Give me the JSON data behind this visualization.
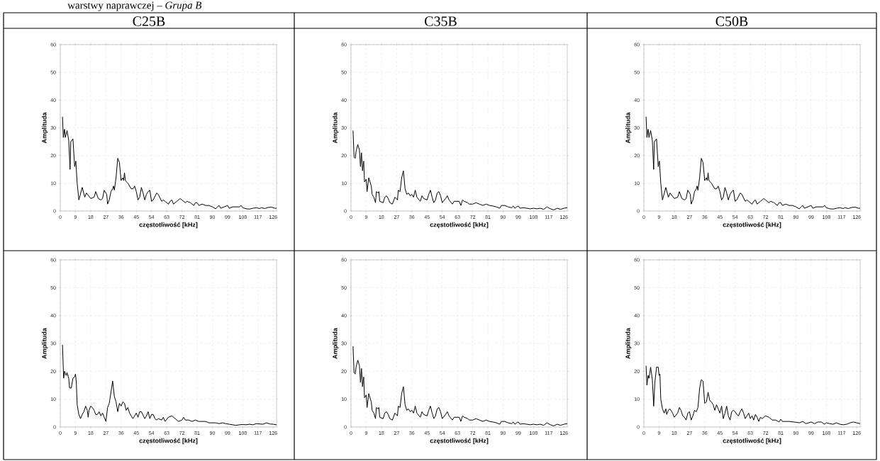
{
  "chart_data": [
    {
      "type": "line",
      "title": "C25B",
      "annotations": [
        "warstwy naprawczej – *Grupa B*"
      ],
      "xlabel": "częstotliwość [kHz]",
      "ylabel": "Amplituda",
      "color": "#000000",
      "grid": true,
      "xlim": [
        0,
        128
      ],
      "ylim": [
        0,
        60
      ],
      "xticks": [
        0,
        9,
        18,
        27,
        36,
        45,
        54,
        63,
        72,
        81,
        90,
        99,
        108,
        117,
        126
      ],
      "yticks": [
        0,
        10,
        20,
        30,
        40,
        50,
        60
      ],
      "x": [
        1.3,
        1.8,
        2.5,
        3,
        4,
        5,
        5.8,
        6.2,
        7.5,
        8.5,
        9.2,
        10,
        11,
        13,
        14.5,
        15.5,
        18,
        20,
        21,
        22.5,
        24,
        25,
        26,
        27.5,
        28,
        29,
        30,
        31,
        31.5,
        32,
        33,
        34,
        35,
        36,
        37,
        37.5,
        38,
        38.5,
        40,
        42,
        43,
        44,
        45,
        46,
        47,
        48,
        49,
        50,
        51,
        52,
        53,
        54,
        55,
        57,
        58,
        60,
        61,
        62,
        64,
        65,
        66,
        67,
        69,
        71,
        72,
        74,
        75,
        77,
        79,
        80,
        81,
        82,
        84,
        86,
        88,
        90,
        92,
        93,
        94,
        95,
        97,
        99,
        100,
        102,
        104,
        106,
        107,
        108,
        110,
        112,
        114,
        116,
        118,
        119,
        121,
        123,
        125,
        127,
        128
      ],
      "values": [
        34,
        26.5,
        29.5,
        26.5,
        29,
        25.5,
        15,
        25,
        26,
        16,
        18,
        10,
        4,
        8.5,
        5,
        6.5,
        4.5,
        5,
        7,
        4.5,
        4,
        4.5,
        7.5,
        6,
        2.5,
        4,
        7,
        8,
        9,
        7.5,
        12,
        19,
        17.5,
        11,
        12,
        11,
        13.8,
        11,
        10,
        8,
        8,
        9,
        7,
        4,
        5,
        8.5,
        6.5,
        4,
        6,
        7,
        7.5,
        3.5,
        4,
        6.5,
        6,
        3.5,
        4,
        3.5,
        2.5,
        3.5,
        4,
        2.5,
        3.5,
        4.5,
        4,
        3,
        3.5,
        3,
        2,
        3,
        3,
        2,
        2.5,
        2,
        2,
        1.5,
        0.8,
        1.5,
        2,
        1,
        1.5,
        2,
        1,
        1.5,
        1.5,
        1.5,
        2,
        1.2,
        0.8,
        0.7,
        1,
        1.2,
        0.9,
        1.2,
        0.9,
        1.3,
        1.4,
        1,
        1
      ]
    },
    {
      "type": "line",
      "title": "C35B",
      "xlabel": "częstotliwość [kHz]",
      "ylabel": "Amplituda",
      "color": "#000000",
      "grid": true,
      "xlim": [
        0,
        128
      ],
      "ylim": [
        0,
        60
      ],
      "xticks": [
        0,
        9,
        18,
        27,
        36,
        45,
        54,
        63,
        72,
        81,
        90,
        99,
        108,
        117,
        126
      ],
      "yticks": [
        0,
        10,
        20,
        30,
        40,
        50,
        60
      ],
      "x": [
        1.2,
        1.8,
        2.5,
        3,
        4,
        5,
        5.6,
        6.2,
        6.8,
        7.5,
        8,
        8.5,
        9,
        9.5,
        10.5,
        12,
        12.5,
        13.5,
        14.5,
        15,
        16,
        16.5,
        17,
        19,
        20,
        21,
        22,
        23,
        24.5,
        26,
        27.5,
        28,
        29,
        30,
        31,
        32,
        33,
        34,
        35,
        36,
        37,
        38,
        39,
        41,
        42,
        43,
        45,
        46,
        47,
        48,
        49,
        50,
        51,
        52,
        53,
        54,
        56,
        57,
        58,
        60,
        61,
        63,
        64,
        65,
        66,
        67,
        69,
        70,
        72,
        74,
        76,
        78,
        80,
        82,
        84,
        86,
        88,
        89,
        91,
        93,
        95,
        96,
        97,
        98,
        99,
        100,
        102,
        104,
        106,
        108,
        110,
        112,
        114,
        116,
        118,
        120,
        122,
        124,
        126,
        128
      ],
      "values": [
        29,
        19.5,
        19,
        21.5,
        24,
        22,
        16,
        21,
        14.5,
        18,
        10.5,
        11,
        11.5,
        7,
        12,
        9,
        6,
        5,
        3,
        7,
        6.5,
        7,
        3.5,
        3,
        5,
        5.5,
        4.5,
        3,
        2.5,
        5,
        4,
        7.5,
        7,
        12,
        14.5,
        8,
        6,
        6.5,
        5.5,
        6,
        5,
        7.5,
        5,
        3.5,
        5.5,
        4.5,
        4,
        6,
        7.5,
        5,
        3,
        4,
        6.5,
        7,
        5.5,
        3,
        4.5,
        5.5,
        4,
        2.5,
        3.5,
        3.5,
        3.5,
        2,
        4,
        3.5,
        3,
        2.5,
        2.5,
        3,
        2.5,
        2,
        2.5,
        2,
        1.8,
        1.5,
        1,
        2,
        2,
        1.5,
        1.2,
        1.8,
        1,
        1.5,
        1.8,
        1,
        1.2,
        1,
        0.8,
        1,
        0.8,
        1,
        0.6,
        1.5,
        0.8,
        0.4,
        1,
        0.6,
        1,
        1.2
      ]
    },
    {
      "type": "line",
      "title": "C50B",
      "xlabel": "częstotliwość [kHz]",
      "ylabel": "Amplituda",
      "color": "#000000",
      "grid": true,
      "xlim": [
        0,
        128
      ],
      "ylim": [
        0,
        60
      ],
      "xticks": [
        0,
        9,
        18,
        27,
        36,
        45,
        54,
        63,
        72,
        81,
        90,
        99,
        108,
        117,
        126
      ],
      "yticks": [
        0,
        10,
        20,
        30,
        40,
        50,
        60
      ],
      "x": [
        1.3,
        1.8,
        2.5,
        3,
        4,
        5,
        5.8,
        6.2,
        7.5,
        8.5,
        9.2,
        10,
        11,
        13,
        14.5,
        15.5,
        18,
        20,
        21,
        22.5,
        24,
        25,
        26,
        27.5,
        28,
        29,
        30,
        31,
        31.5,
        32,
        33,
        34,
        35,
        36,
        37,
        37.5,
        38,
        38.5,
        40,
        42,
        43,
        44,
        45,
        46,
        47,
        48,
        49,
        50,
        51,
        52,
        53,
        54,
        55,
        57,
        58,
        60,
        61,
        62,
        64,
        65,
        66,
        67,
        69,
        71,
        72,
        74,
        75,
        77,
        79,
        80,
        81,
        82,
        84,
        86,
        88,
        90,
        92,
        93,
        94,
        95,
        97,
        99,
        100,
        102,
        104,
        106,
        107,
        108,
        110,
        112,
        114,
        116,
        118,
        119,
        121,
        123,
        125,
        127,
        128
      ],
      "values": [
        34,
        26.5,
        29.5,
        26.5,
        29,
        25.5,
        15,
        25,
        26,
        16,
        18,
        10,
        4,
        8.5,
        5,
        6.5,
        4.5,
        5,
        7,
        4.5,
        4,
        4.5,
        7.5,
        6,
        2.5,
        4,
        7,
        8,
        9,
        7.5,
        12,
        19,
        17.5,
        11,
        12,
        11,
        13.8,
        11,
        10,
        8,
        8,
        9,
        7,
        4,
        5,
        8.5,
        6.5,
        4,
        6,
        7,
        7.5,
        3.5,
        4,
        6.5,
        6,
        3.5,
        4,
        3.5,
        2.5,
        3.5,
        4,
        2.5,
        3.5,
        4.5,
        4,
        3,
        3.5,
        3,
        2,
        3,
        3,
        2,
        2.5,
        2,
        2,
        1.5,
        0.8,
        1.5,
        2,
        1,
        1.5,
        2,
        1,
        1.5,
        1.5,
        1.5,
        2,
        1.2,
        0.8,
        0.7,
        1,
        1.2,
        0.9,
        1.2,
        0.9,
        1.3,
        1.4,
        1,
        1
      ]
    },
    {
      "type": "line",
      "xlabel": "częstotliwość [kHz]",
      "ylabel": "Amplituda",
      "color": "#000000",
      "grid": true,
      "xlim": [
        0,
        128
      ],
      "ylim": [
        0,
        60
      ],
      "xticks": [
        0,
        9,
        18,
        27,
        36,
        45,
        54,
        63,
        72,
        81,
        90,
        99,
        108,
        117,
        126
      ],
      "yticks": [
        0,
        10,
        20,
        30,
        40,
        50,
        60
      ],
      "x": [
        1.3,
        2,
        2.5,
        3.5,
        4,
        5,
        5.5,
        6.5,
        7.5,
        8.5,
        9,
        9.5,
        10,
        11,
        12,
        13,
        14,
        15,
        16,
        16.5,
        17,
        18,
        19,
        20,
        21,
        22,
        23,
        24,
        25,
        26,
        27,
        28,
        29,
        30,
        31,
        32,
        33,
        34,
        35,
        36,
        37,
        38,
        39,
        40,
        41,
        42,
        43,
        44,
        45,
        46,
        47,
        48,
        50,
        51,
        52,
        53,
        54,
        55,
        56,
        57,
        58,
        60,
        61,
        62,
        64,
        66,
        67,
        68,
        70,
        72,
        73,
        74,
        76,
        78,
        80,
        82,
        84,
        86,
        88,
        90,
        92,
        94,
        96,
        98,
        100,
        102,
        104,
        106,
        108,
        110,
        112,
        114,
        116,
        118,
        120,
        122,
        124,
        126,
        128
      ],
      "values": [
        29.5,
        17.5,
        20,
        18.5,
        19.5,
        17.5,
        14,
        14,
        17.5,
        18,
        19,
        16,
        8,
        4.5,
        3,
        4.5,
        5.5,
        7.5,
        6,
        3.5,
        6,
        7.5,
        7,
        6,
        4.5,
        4.5,
        5.5,
        4,
        5,
        3.5,
        2,
        7,
        8.5,
        12.5,
        16.5,
        11,
        9,
        5.5,
        8.5,
        7.5,
        9,
        8.5,
        6,
        7,
        5,
        4,
        3,
        4,
        5,
        3.5,
        5.5,
        5.5,
        3,
        4,
        5.5,
        3,
        4.5,
        4.5,
        3,
        2.5,
        3,
        2.5,
        3.5,
        2,
        3.5,
        4,
        3.5,
        3,
        2,
        2.5,
        3.5,
        2.5,
        2.5,
        2,
        2.5,
        2,
        2,
        2,
        1.5,
        1.5,
        1.5,
        1.2,
        1.5,
        1.2,
        1,
        0.8,
        0.6,
        0.8,
        0.9,
        0.8,
        1,
        0.8,
        1.2,
        1.1,
        1,
        1.5,
        1.1,
        1,
        0.8
      ]
    },
    {
      "type": "line",
      "xlabel": "częstotliwość [kHz]",
      "ylabel": "Amplituda",
      "color": "#000000",
      "grid": true,
      "xlim": [
        0,
        128
      ],
      "ylim": [
        0,
        60
      ],
      "xticks": [
        0,
        9,
        18,
        27,
        36,
        45,
        54,
        63,
        72,
        81,
        90,
        99,
        108,
        117,
        126
      ],
      "yticks": [
        0,
        10,
        20,
        30,
        40,
        50,
        60
      ],
      "x": [
        1.2,
        1.8,
        2.5,
        3,
        4,
        5,
        5.6,
        6.2,
        6.8,
        7.5,
        8,
        8.5,
        9,
        9.5,
        10.5,
        12,
        12.5,
        13.5,
        14.5,
        15,
        16,
        16.5,
        17,
        19,
        20,
        21,
        22,
        23,
        24.5,
        26,
        27.5,
        28,
        29,
        30,
        31,
        32,
        33,
        34,
        35,
        36,
        37,
        38,
        39,
        41,
        42,
        43,
        45,
        46,
        47,
        48,
        49,
        50,
        51,
        52,
        53,
        54,
        56,
        57,
        58,
        60,
        61,
        63,
        64,
        65,
        66,
        67,
        69,
        70,
        72,
        74,
        76,
        78,
        80,
        82,
        84,
        86,
        88,
        89,
        91,
        93,
        95,
        96,
        97,
        98,
        99,
        100,
        102,
        104,
        106,
        108,
        110,
        112,
        114,
        116,
        118,
        120,
        122,
        124,
        126,
        128
      ],
      "values": [
        29,
        19.5,
        19,
        21.5,
        24,
        22,
        16,
        21,
        14.5,
        18,
        10.5,
        11,
        11.5,
        7,
        12,
        9,
        6,
        5,
        3,
        7,
        6.5,
        7,
        3.5,
        3,
        5,
        5.5,
        4.5,
        3,
        2.5,
        5,
        4,
        7.5,
        7,
        12,
        14.5,
        8,
        6,
        6.5,
        5.5,
        6,
        5,
        7.5,
        5,
        3.5,
        5.5,
        4.5,
        4,
        6,
        7.5,
        5,
        3,
        4,
        6.5,
        7,
        5.5,
        3,
        4.5,
        5.5,
        4,
        2.5,
        3.5,
        3.5,
        3.5,
        2,
        4,
        3.5,
        3,
        2.5,
        2.5,
        3,
        2.5,
        2,
        2.5,
        2,
        1.8,
        1.5,
        1,
        2,
        2,
        1.5,
        1.2,
        1.8,
        1,
        1.5,
        1.8,
        1,
        1.2,
        1,
        0.8,
        1,
        0.8,
        1,
        0.6,
        1.5,
        0.8,
        0.4,
        1,
        0.6,
        1,
        1.2
      ]
    },
    {
      "type": "line",
      "xlabel": "częstotliwość [kHz]",
      "ylabel": "Amplituda",
      "color": "#000000",
      "grid": true,
      "xlim": [
        0,
        128
      ],
      "ylim": [
        0,
        60
      ],
      "xticks": [
        0,
        9,
        18,
        27,
        36,
        45,
        54,
        63,
        72,
        81,
        90,
        99,
        108,
        117,
        126
      ],
      "yticks": [
        0,
        10,
        20,
        30,
        40,
        50,
        60
      ],
      "x": [
        1.3,
        1.8,
        2.5,
        3,
        4,
        5,
        5.8,
        6.5,
        7.5,
        8.5,
        9,
        9.5,
        10,
        11,
        12,
        13,
        13.5,
        14.5,
        15.5,
        17,
        18,
        20,
        21,
        22,
        23,
        24,
        25,
        26,
        27,
        28,
        29,
        30,
        31,
        32,
        33,
        34,
        35,
        36,
        37,
        38,
        39,
        40,
        41,
        42,
        43,
        44,
        45,
        46,
        47,
        48,
        49,
        50,
        51,
        52,
        53,
        54,
        55,
        56,
        57,
        58,
        59,
        60,
        61,
        62,
        63,
        64,
        65,
        66,
        67,
        68,
        69,
        70,
        71,
        72,
        74,
        76,
        78,
        80,
        81,
        82,
        86,
        90,
        92,
        94,
        96,
        99,
        101,
        103,
        105,
        107,
        108,
        110,
        112,
        114,
        116,
        118,
        120,
        122,
        124,
        126,
        128
      ],
      "values": [
        22,
        15,
        18.5,
        17.5,
        21.5,
        17,
        7.5,
        16,
        21.5,
        21.5,
        18.5,
        19,
        10,
        6.5,
        5,
        6.5,
        4.5,
        6,
        6.5,
        5,
        3.5,
        5,
        7,
        6,
        4,
        3.5,
        2.5,
        5,
        5.5,
        2.5,
        4,
        6,
        5.5,
        7,
        14,
        17,
        16.5,
        8.5,
        9,
        12.5,
        9.5,
        9,
        8,
        6,
        8,
        6.5,
        5,
        7.5,
        3,
        5,
        7.5,
        4,
        2.5,
        5.5,
        6,
        5.5,
        4.5,
        4,
        5.5,
        6.5,
        5,
        3,
        4,
        5,
        3,
        4,
        2.5,
        4.5,
        3.5,
        2,
        3.5,
        3,
        3.5,
        4,
        3.5,
        2.5,
        2.5,
        1.8,
        2.8,
        2,
        2,
        1.7,
        1.5,
        2,
        1.2,
        1.8,
        1.2,
        1.8,
        1.8,
        1,
        1.5,
        1.2,
        1,
        1.5,
        1,
        0.8,
        1,
        1.5,
        1.8,
        1.5,
        1.2
      ]
    }
  ]
}
